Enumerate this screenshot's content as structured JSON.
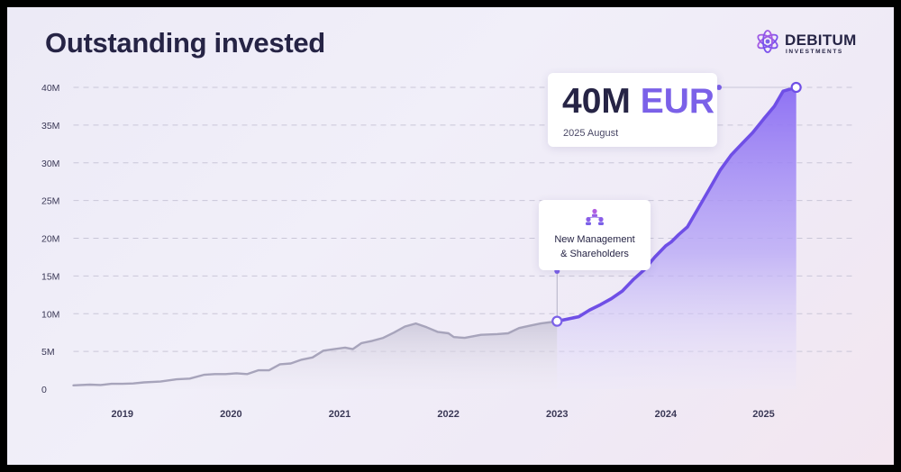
{
  "title": "Outstanding invested",
  "logo": {
    "name": "DEBITUM",
    "sub": "INVESTMENTS",
    "icon": "atom-icon"
  },
  "colors": {
    "accent": "#7b61e8",
    "grey_line": "#a7a4bb",
    "text": "#262445"
  },
  "highlight": {
    "value": "40M",
    "unit": "EUR",
    "date": "2025 August"
  },
  "event": {
    "icon": "people-network-icon",
    "line1": "New Management",
    "line2": "& Shareholders"
  },
  "chart_data": {
    "type": "area",
    "title": "Outstanding invested",
    "xlabel": "",
    "ylabel": "",
    "x_ticks": [
      "2019",
      "2020",
      "2021",
      "2022",
      "2023",
      "2024",
      "2025"
    ],
    "y_ticks": [
      "0",
      "5M",
      "10M",
      "15M",
      "20M",
      "25M",
      "30M",
      "35M",
      "40M"
    ],
    "ylim": [
      0,
      40
    ],
    "xlim": [
      2018.55,
      2025.75
    ],
    "grid": true,
    "series": [
      {
        "color": "grey",
        "points": [
          [
            2018.55,
            0.5
          ],
          [
            2018.7,
            0.6
          ],
          [
            2018.8,
            0.55
          ],
          [
            2018.9,
            0.7
          ],
          [
            2019.0,
            0.7
          ],
          [
            2019.1,
            0.75
          ],
          [
            2019.2,
            0.9
          ],
          [
            2019.35,
            1.0
          ],
          [
            2019.5,
            1.3
          ],
          [
            2019.62,
            1.4
          ],
          [
            2019.75,
            1.9
          ],
          [
            2019.85,
            2.0
          ],
          [
            2019.95,
            2.0
          ],
          [
            2020.05,
            2.1
          ],
          [
            2020.15,
            2.0
          ],
          [
            2020.25,
            2.5
          ],
          [
            2020.35,
            2.5
          ],
          [
            2020.45,
            3.3
          ],
          [
            2020.55,
            3.4
          ],
          [
            2020.65,
            3.9
          ],
          [
            2020.75,
            4.2
          ],
          [
            2020.85,
            5.1
          ],
          [
            2020.95,
            5.3
          ],
          [
            2021.05,
            5.5
          ],
          [
            2021.12,
            5.3
          ],
          [
            2021.2,
            6.1
          ],
          [
            2021.3,
            6.4
          ],
          [
            2021.4,
            6.8
          ],
          [
            2021.5,
            7.5
          ],
          [
            2021.6,
            8.3
          ],
          [
            2021.7,
            8.7
          ],
          [
            2021.8,
            8.2
          ],
          [
            2021.9,
            7.6
          ],
          [
            2022.0,
            7.4
          ],
          [
            2022.05,
            6.9
          ],
          [
            2022.15,
            6.8
          ],
          [
            2022.3,
            7.2
          ],
          [
            2022.45,
            7.3
          ],
          [
            2022.55,
            7.4
          ],
          [
            2022.65,
            8.1
          ],
          [
            2022.75,
            8.4
          ],
          [
            2022.85,
            8.7
          ],
          [
            2022.95,
            8.9
          ],
          [
            2023.0,
            9.0
          ]
        ]
      },
      {
        "color": "purple",
        "points": [
          [
            2023.0,
            9.0
          ],
          [
            2023.1,
            9.3
          ],
          [
            2023.2,
            9.6
          ],
          [
            2023.3,
            10.5
          ],
          [
            2023.4,
            11.2
          ],
          [
            2023.5,
            12.0
          ],
          [
            2023.6,
            13.0
          ],
          [
            2023.7,
            14.5
          ],
          [
            2023.8,
            15.8
          ],
          [
            2023.9,
            17.5
          ],
          [
            2024.0,
            19.0
          ],
          [
            2024.05,
            19.5
          ],
          [
            2024.12,
            20.5
          ],
          [
            2024.2,
            21.5
          ],
          [
            2024.3,
            24.0
          ],
          [
            2024.4,
            26.5
          ],
          [
            2024.5,
            29.0
          ],
          [
            2024.6,
            31.0
          ],
          [
            2024.7,
            32.5
          ],
          [
            2024.8,
            34.0
          ],
          [
            2024.9,
            35.8
          ],
          [
            2025.0,
            37.5
          ],
          [
            2025.08,
            39.5
          ],
          [
            2025.2,
            40.0
          ]
        ]
      }
    ],
    "annotations": [
      {
        "x": 2023.0,
        "y": 9.0,
        "text": "New Management & Shareholders"
      },
      {
        "x": 2025.2,
        "y": 40.0,
        "text": "40M EUR 2025 August"
      }
    ]
  }
}
